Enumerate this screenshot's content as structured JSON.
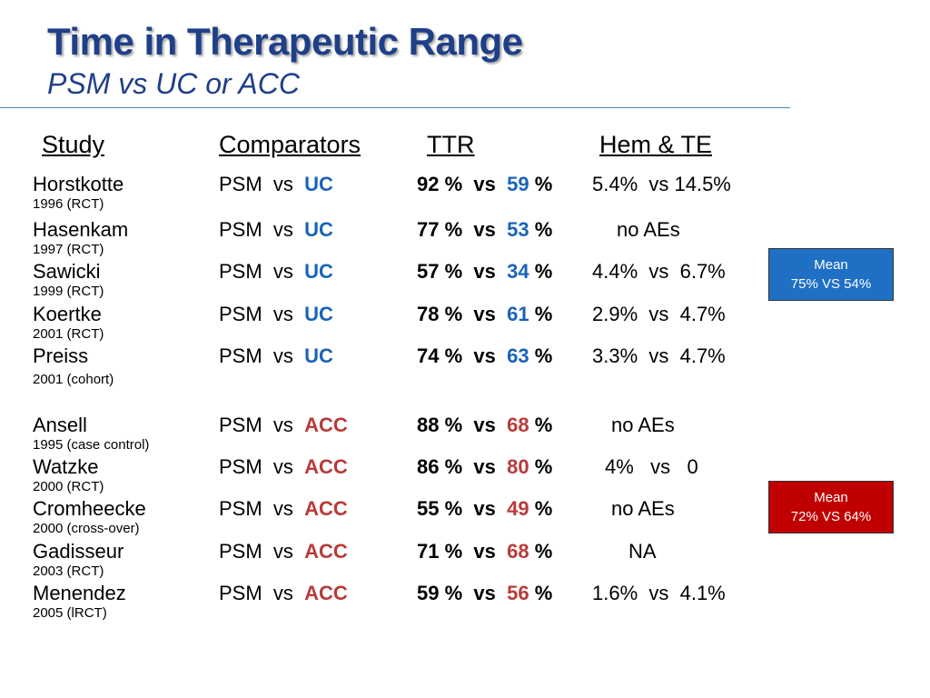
{
  "title": "Time in Therapeutic Range",
  "subtitle": "PSM vs UC or ACC",
  "headers": {
    "study": "Study",
    "comparators": "Comparators",
    "ttr": "TTR",
    "hem": "Hem & TE"
  },
  "colors": {
    "uc": "#1a63b8",
    "acc": "#b93a3a",
    "title": "#1f3f88"
  },
  "rows": [
    {
      "study": "Horstkotte",
      "sub": "1996 (RCT)",
      "psm": "PSM  vs",
      "comp": "UC",
      "ttr_a": "92 %  vs",
      "ttr_b": "59",
      "ttr_c": "%",
      "hem": "5.4%  vs 14.5%"
    },
    {
      "study": "Hasenkam",
      "sub": "1997 (RCT)",
      "psm": "PSM  vs",
      "comp": "UC",
      "ttr_a": "77 %  vs",
      "ttr_b": "53",
      "ttr_c": "%",
      "hem": "no AEs"
    },
    {
      "study": "Sawicki",
      "sub": "1999 (RCT)",
      "psm": "PSM  vs",
      "comp": "UC",
      "ttr_a": "57 %  vs",
      "ttr_b": "34",
      "ttr_c": "%",
      "hem": "4.4%  vs  6.7%"
    },
    {
      "study": "Koertke",
      "sub": "2001 (RCT)",
      "psm": "PSM  vs",
      "comp": "UC",
      "ttr_a": "78 %  vs",
      "ttr_b": "61",
      "ttr_c": "%",
      "hem": "2.9%  vs  4.7%"
    },
    {
      "study": "Preiss",
      "sub": "2001 (cohort)",
      "psm": "PSM  vs",
      "comp": "UC",
      "ttr_a": "74 %  vs",
      "ttr_b": "63",
      "ttr_c": "%",
      "hem": "3.3%  vs  4.7%"
    },
    {
      "study": "Ansell",
      "sub": "1995 (case control)",
      "psm": "PSM  vs",
      "comp": "ACC",
      "ttr_a": "88 %  vs",
      "ttr_b": "68",
      "ttr_c": "%",
      "hem": "no AEs"
    },
    {
      "study": "Watzke",
      "sub": "2000 (RCT)",
      "psm": "PSM  vs",
      "comp": "ACC",
      "ttr_a": "86 %  vs",
      "ttr_b": "80",
      "ttr_c": "%",
      "hem": "4%   vs   0"
    },
    {
      "study": "Cromheecke",
      "sub": "2000 (cross-over)",
      "psm": "PSM  vs",
      "comp": "ACC",
      "ttr_a": "55 %  vs",
      "ttr_b": "49",
      "ttr_c": "%",
      "hem": "no AEs"
    },
    {
      "study": "Gadisseur",
      "sub": "2003 (RCT)",
      "psm": "PSM  vs",
      "comp": "ACC",
      "ttr_a": "71 %  vs",
      "ttr_b": "68",
      "ttr_c": "%",
      "hem": "NA"
    },
    {
      "study": "Menendez",
      "sub": "2005 (lRCT)",
      "psm": "PSM  vs",
      "comp": "ACC",
      "ttr_a": "59 %  vs",
      "ttr_b": "56",
      "ttr_c": "%",
      "hem": "1.6%  vs  4.1%"
    }
  ],
  "mean_uc": {
    "line1": "Mean",
    "line2": "75% VS 54%"
  },
  "mean_acc": {
    "line1": "Mean",
    "line2": "72% VS 64%"
  }
}
